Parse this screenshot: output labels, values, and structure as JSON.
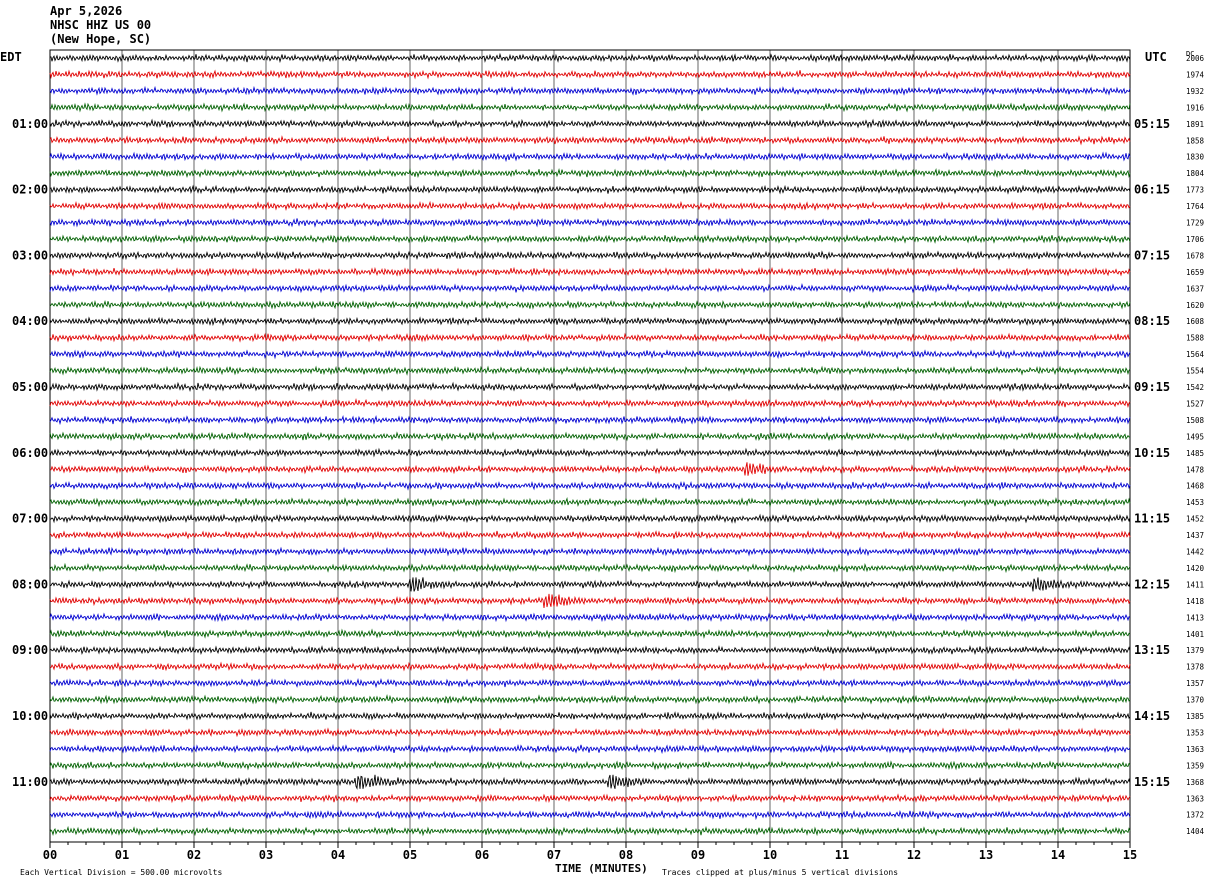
{
  "header": {
    "date": "Apr 5,2026",
    "station": "NHSC HHZ US 00",
    "location": "(New Hope, SC)"
  },
  "left_tz": "EDT",
  "right_tz": "UTC",
  "dc_label": "DC",
  "footer": {
    "scale": "Each Vertical Division =  500.00 microvolts",
    "clip": "Traces clipped at plus/minus 5 vertical divisions",
    "xtitle": "TIME (MINUTES)"
  },
  "colors": {
    "trace_cycle": [
      "#000000",
      "#e00000",
      "#0000d0",
      "#006000"
    ],
    "grid": "#000000"
  },
  "chart_data": {
    "type": "line",
    "title": "NHSC HHZ US 00",
    "xlabel": "TIME (MINUTES)",
    "xlim": [
      0,
      15
    ],
    "x_ticks": [
      "00",
      "01",
      "02",
      "03",
      "04",
      "05",
      "06",
      "07",
      "08",
      "09",
      "10",
      "11",
      "12",
      "13",
      "14",
      "15"
    ],
    "traces_per_hour": 4,
    "left_hour_labels": [
      {
        "row": 4,
        "label": "01:00"
      },
      {
        "row": 8,
        "label": "02:00"
      },
      {
        "row": 12,
        "label": "03:00"
      },
      {
        "row": 16,
        "label": "04:00"
      },
      {
        "row": 20,
        "label": "05:00"
      },
      {
        "row": 24,
        "label": "06:00"
      },
      {
        "row": 28,
        "label": "07:00"
      },
      {
        "row": 32,
        "label": "08:00"
      },
      {
        "row": 36,
        "label": "09:00"
      },
      {
        "row": 40,
        "label": "10:00"
      },
      {
        "row": 44,
        "label": "11:00"
      }
    ],
    "right_hour_labels": [
      {
        "row": 4,
        "label": "05:15"
      },
      {
        "row": 8,
        "label": "06:15"
      },
      {
        "row": 12,
        "label": "07:15"
      },
      {
        "row": 16,
        "label": "08:15"
      },
      {
        "row": 20,
        "label": "09:15"
      },
      {
        "row": 24,
        "label": "10:15"
      },
      {
        "row": 28,
        "label": "11:15"
      },
      {
        "row": 32,
        "label": "12:15"
      },
      {
        "row": 36,
        "label": "13:15"
      },
      {
        "row": 40,
        "label": "14:15"
      },
      {
        "row": 44,
        "label": "15:15"
      }
    ],
    "dc_offsets": [
      2006,
      1974,
      1932,
      1916,
      1891,
      1858,
      1830,
      1804,
      1773,
      1764,
      1729,
      1706,
      1678,
      1659,
      1637,
      1620,
      1608,
      1588,
      1564,
      1554,
      1542,
      1527,
      1508,
      1495,
      1485,
      1478,
      1468,
      1453,
      1452,
      1437,
      1442,
      1420,
      1411,
      1418,
      1413,
      1401,
      1379,
      1378,
      1357,
      1370,
      1385,
      1353,
      1363,
      1359,
      1368,
      1363,
      1372,
      1404
    ],
    "events": [
      {
        "row": 32,
        "minute": 5.05,
        "amplitude": 2.4
      },
      {
        "row": 44,
        "minute": 4.3,
        "amplitude": 2.6
      },
      {
        "row": 44,
        "minute": 7.8,
        "amplitude": 2.0
      },
      {
        "row": 32,
        "minute": 13.7,
        "amplitude": 1.8
      },
      {
        "row": 33,
        "minute": 6.9,
        "amplitude": 1.6
      },
      {
        "row": 25,
        "minute": 9.7,
        "amplitude": 1.5
      }
    ]
  }
}
